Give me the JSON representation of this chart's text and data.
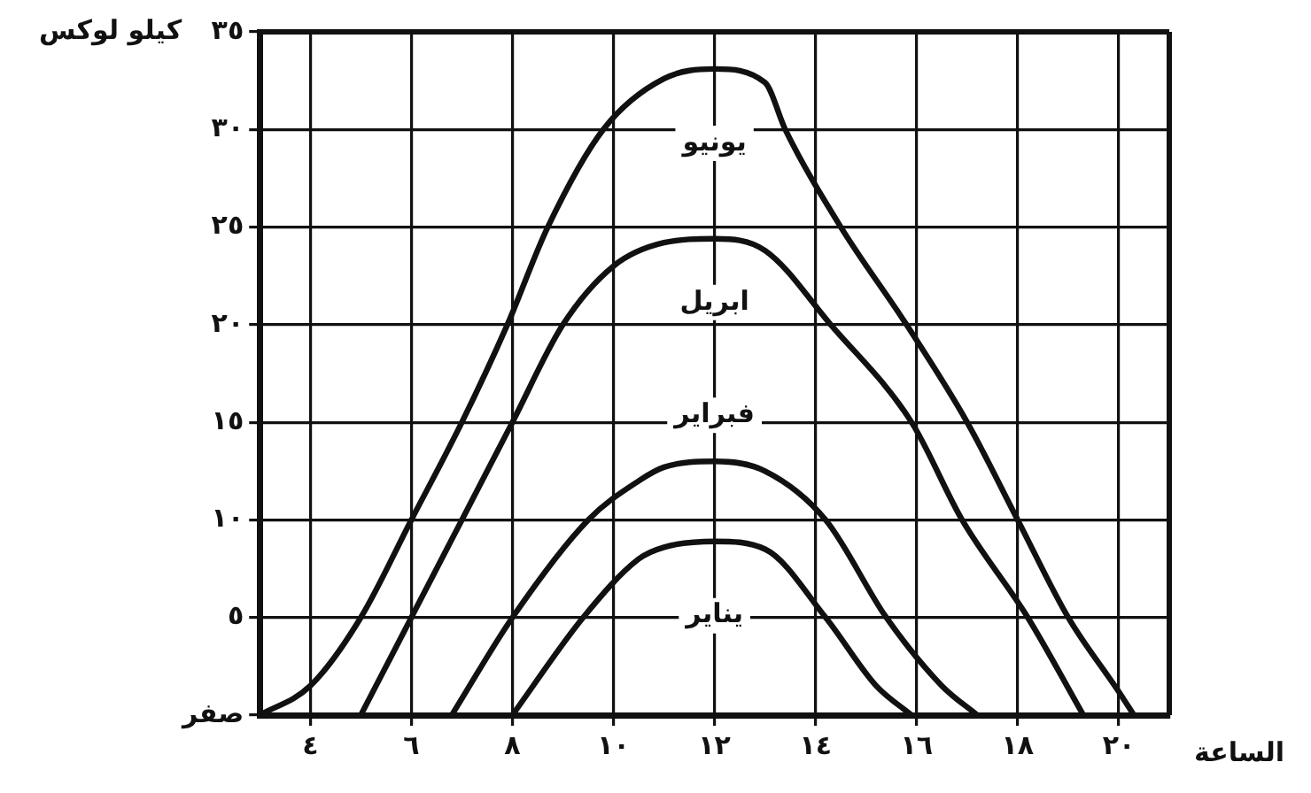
{
  "chart_data": {
    "type": "line",
    "xlabel": "الساعة",
    "ylabel": "كيلو لوكس",
    "xlim": [
      3,
      21
    ],
    "ylim": [
      0,
      35
    ],
    "xticks": [
      {
        "value": 4,
        "label": "٤"
      },
      {
        "value": 6,
        "label": "٦"
      },
      {
        "value": 8,
        "label": "٨"
      },
      {
        "value": 10,
        "label": "١٠"
      },
      {
        "value": 12,
        "label": "١٢"
      },
      {
        "value": 14,
        "label": "١٤"
      },
      {
        "value": 16,
        "label": "١٦"
      },
      {
        "value": 18,
        "label": "١٨"
      },
      {
        "value": 20,
        "label": "٢٠"
      }
    ],
    "yticks": [
      {
        "value": 0,
        "label": "صفر"
      },
      {
        "value": 5,
        "label": "٥"
      },
      {
        "value": 10,
        "label": "١٠"
      },
      {
        "value": 15,
        "label": "١٥"
      },
      {
        "value": 20,
        "label": "٢٠"
      },
      {
        "value": 25,
        "label": "٢٥"
      },
      {
        "value": 30,
        "label": "٣٠"
      },
      {
        "value": 35,
        "label": "٣٥"
      }
    ],
    "grid": true,
    "legend": false,
    "marker": "none",
    "line_style": "solid",
    "series": [
      {
        "name": "يونيو",
        "color": "#111111",
        "x": [
          3,
          4,
          5,
          6,
          7,
          7.9,
          8.7,
          9.8,
          11,
          12,
          13,
          13.4,
          14.5,
          15.8,
          17,
          18,
          19,
          20,
          20.3
        ],
        "values": [
          0,
          1.5,
          5,
          10,
          15,
          20,
          25,
          30,
          32.6,
          33.1,
          32.4,
          30,
          25,
          20,
          15,
          10,
          5,
          1.2,
          0
        ]
      },
      {
        "name": "ابريل",
        "color": "#111111",
        "x": [
          5,
          6,
          7,
          8,
          9,
          10,
          11,
          12,
          13,
          14.3,
          15.9,
          16.9,
          18.2,
          19.3
        ],
        "values": [
          0,
          5,
          10,
          15,
          20,
          23,
          24.2,
          24.4,
          23.8,
          20,
          15,
          10,
          5,
          0
        ]
      },
      {
        "name": "فبراير",
        "color": "#111111",
        "x": [
          6.8,
          8,
          9.5,
          10.5,
          11,
          12,
          13,
          14.2,
          15.4,
          16.5,
          17.2
        ],
        "values": [
          0,
          5,
          10,
          12,
          12.7,
          13,
          12.5,
          10,
          5,
          1.5,
          0
        ]
      },
      {
        "name": "يناير",
        "color": "#111111",
        "x": [
          8,
          9.4,
          10.5,
          11,
          12,
          13,
          14.2,
          15.2,
          15.9
        ],
        "values": [
          0,
          5,
          8,
          8.6,
          8.9,
          8.5,
          5,
          1.5,
          0
        ]
      }
    ]
  }
}
